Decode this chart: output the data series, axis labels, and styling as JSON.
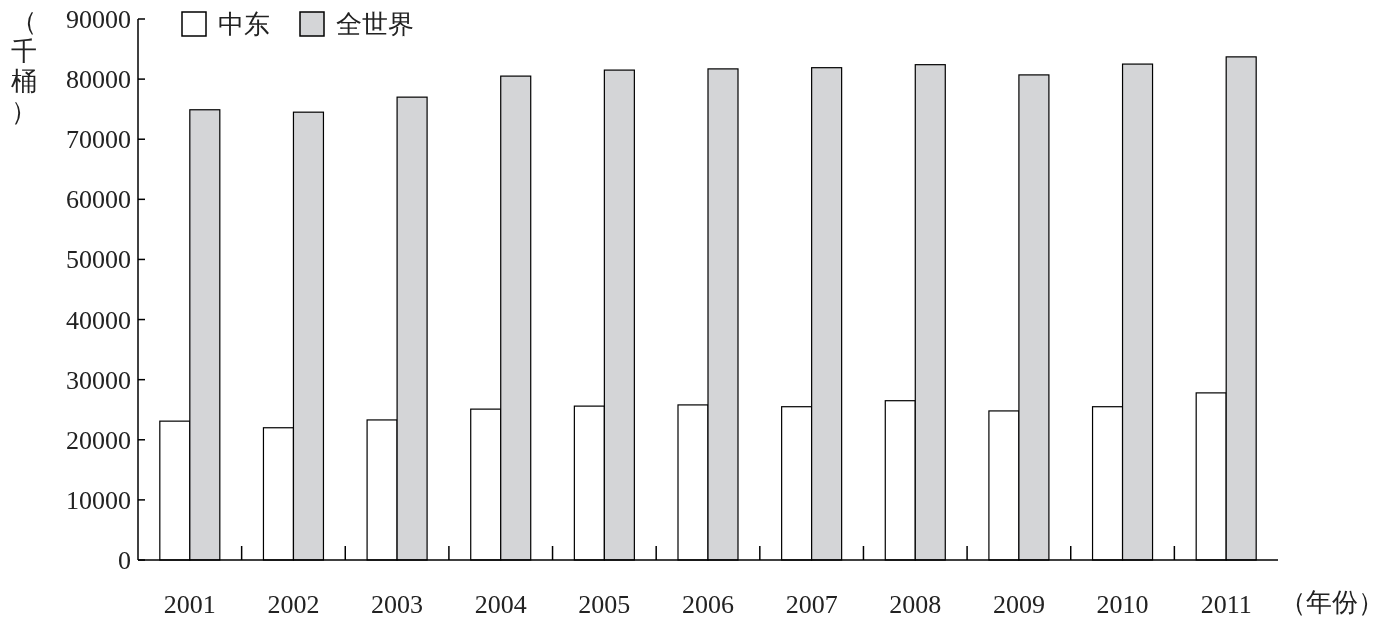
{
  "chart_data": {
    "type": "bar",
    "xlabel": "（年份）",
    "ylabel": "（千桶）",
    "categories": [
      "2001",
      "2002",
      "2003",
      "2004",
      "2005",
      "2006",
      "2007",
      "2008",
      "2009",
      "2010",
      "2011"
    ],
    "series": [
      {
        "name": "中东",
        "color": "#ffffff",
        "values": [
          23100,
          22000,
          23300,
          25100,
          25600,
          25800,
          25500,
          26500,
          24800,
          25500,
          27800
        ]
      },
      {
        "name": "全世界",
        "color": "#d4d5d7",
        "values": [
          74900,
          74500,
          77000,
          80500,
          81500,
          81700,
          81900,
          82400,
          80700,
          82500,
          83700
        ]
      }
    ],
    "ylim": [
      0,
      90000
    ],
    "yticks": [
      0,
      10000,
      20000,
      30000,
      40000,
      50000,
      60000,
      70000,
      80000,
      90000
    ],
    "legend": "top left",
    "grid": false
  }
}
